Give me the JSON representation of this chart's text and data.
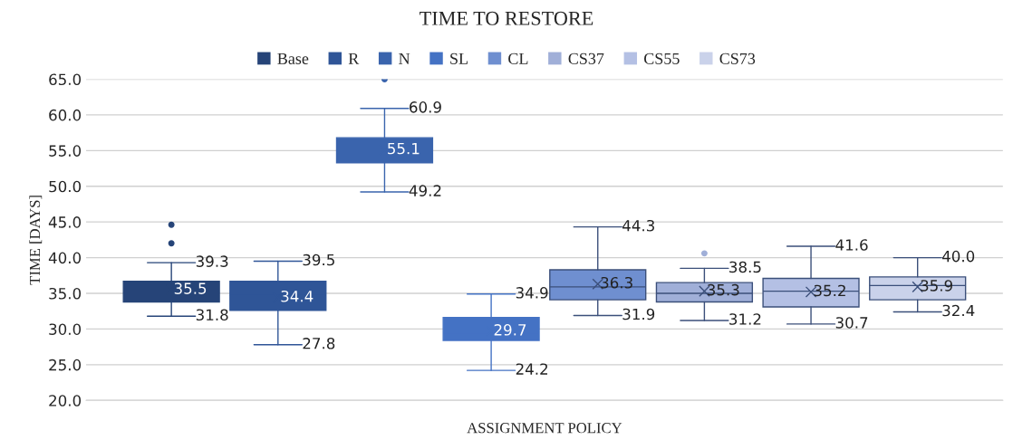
{
  "chart_data": {
    "type": "box",
    "title": "TIME TO RESTORE",
    "xlabel": "ASSIGNMENT POLICY",
    "ylabel": "TIME [DAYS]",
    "categories": [
      null
    ],
    "series": [
      {
        "name": "Base",
        "color": "#264478",
        "boxes": [
          {
            "low": 31.8,
            "q1": 33.8,
            "median": 35.1,
            "q3": 36.7,
            "high": 39.3,
            "mean": 35.5,
            "outliers": [
              42.0,
              44.6
            ]
          }
        ],
        "value_labels": [
          [
            "39.3",
            "35.5",
            "31.8"
          ]
        ]
      },
      {
        "name": "R",
        "color": "#2f5597",
        "boxes": [
          {
            "low": 27.8,
            "q1": 32.6,
            "median": 34.7,
            "q3": 36.7,
            "high": 39.5,
            "mean": 34.4
          }
        ],
        "value_labels": [
          [
            "39.5",
            "34.4",
            "27.8"
          ]
        ]
      },
      {
        "name": "N",
        "color": "#3a64ad",
        "boxes": [
          {
            "low": 49.2,
            "q1": 53.3,
            "median": 54.7,
            "q3": 56.8,
            "high": 60.9,
            "mean": 55.1,
            "outliers": [
              65.0
            ]
          }
        ],
        "value_labels": [
          [
            "60.9",
            "55.1",
            "49.2"
          ]
        ]
      },
      {
        "name": "SL",
        "color": "#4472c4",
        "boxes": [
          {
            "low": 24.2,
            "q1": 28.4,
            "median": 29.4,
            "q3": 31.6,
            "high": 34.9,
            "mean": 29.7
          }
        ],
        "value_labels": [
          [
            "34.9",
            "29.7",
            "24.2"
          ]
        ]
      },
      {
        "name": "CL",
        "color": "#6f8fd0",
        "boxes": [
          {
            "low": 31.9,
            "q1": 34.1,
            "median": 35.9,
            "q3": 38.3,
            "high": 44.3,
            "mean": 36.3
          }
        ],
        "value_labels": [
          [
            "44.3",
            "36.3",
            "31.9"
          ]
        ]
      },
      {
        "name": "CS37",
        "color": "#a0afd8",
        "boxes": [
          {
            "low": 31.2,
            "q1": 33.8,
            "median": 35.0,
            "q3": 36.5,
            "high": 38.5,
            "mean": 35.3,
            "outliers": [
              40.6
            ]
          }
        ],
        "value_labels": [
          [
            "38.5",
            "35.3",
            "31.2"
          ]
        ]
      },
      {
        "name": "CS55",
        "color": "#b4c0e4",
        "boxes": [
          {
            "low": 30.7,
            "q1": 33.1,
            "median": 35.3,
            "q3": 37.1,
            "high": 41.6,
            "mean": 35.2
          }
        ],
        "value_labels": [
          [
            "41.6",
            "35.2",
            "30.7"
          ]
        ]
      },
      {
        "name": "CS73",
        "color": "#cad2ea",
        "boxes": [
          {
            "low": 32.4,
            "q1": 34.1,
            "median": 36.1,
            "q3": 37.3,
            "high": 40.0,
            "mean": 35.9
          }
        ],
        "value_labels": [
          [
            "40.0",
            "35.9",
            "32.4"
          ]
        ]
      }
    ],
    "ylim": [
      20,
      65
    ],
    "yticks": [
      {
        "value": 20,
        "label": "20.0"
      },
      {
        "value": 25,
        "label": "25.0"
      },
      {
        "value": 30,
        "label": "30.0"
      },
      {
        "value": 35,
        "label": "35.0"
      },
      {
        "value": 40,
        "label": "40.0"
      },
      {
        "value": 45,
        "label": "45.0"
      },
      {
        "value": 50,
        "label": "50.0"
      },
      {
        "value": 55,
        "label": "55.0"
      },
      {
        "value": 60,
        "label": "60.0"
      },
      {
        "value": 65,
        "label": "65.0"
      }
    ],
    "grid": "y",
    "legend": "top"
  }
}
